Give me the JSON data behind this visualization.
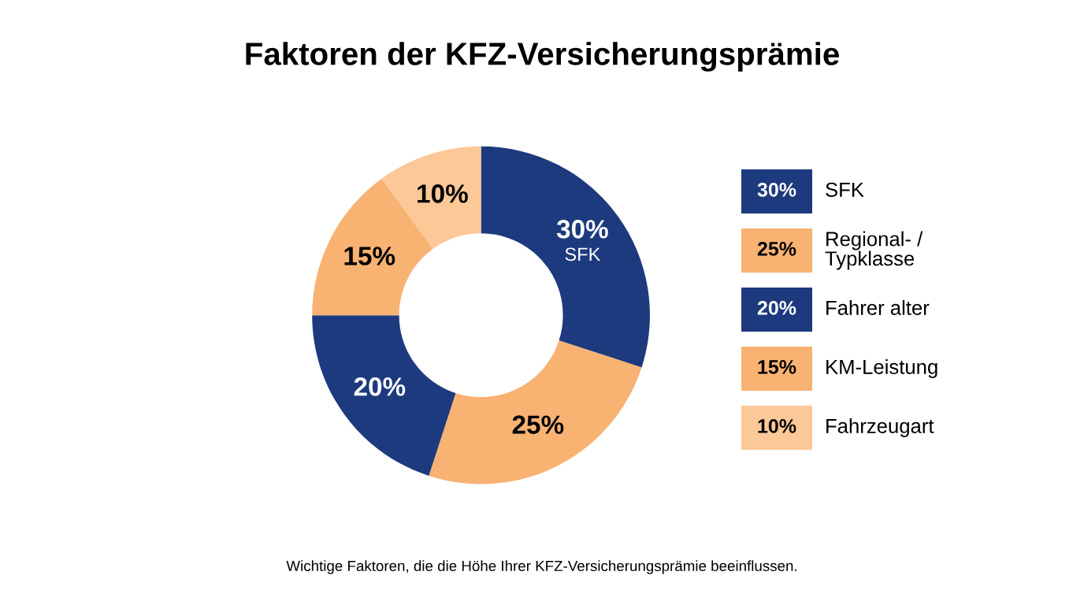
{
  "chart_data": {
    "type": "donut",
    "title": "Faktoren der KFZ-Versicherungsprämie",
    "categories": [
      "SFK",
      "Regional- /\nTypklasse",
      "Fahrer alter",
      "KM-Leistung",
      "Fahrzeugart"
    ],
    "values": [
      30,
      25,
      20,
      15,
      10
    ],
    "colors": [
      "#1e3a7e",
      "#f8b272",
      "#1e3a7e",
      "#f8b272",
      "#fcc897"
    ],
    "value_labels": [
      "30%",
      "25%",
      "20%",
      "15%",
      "10%"
    ],
    "legend": "right",
    "annotations": [
      {
        "text": "SFK",
        "x": "SFK"
      },
      "Wichtige Faktoren, die die Höhe Ihrer KFZ-Versicherungsprämie beeinflussen."
    ]
  }
}
